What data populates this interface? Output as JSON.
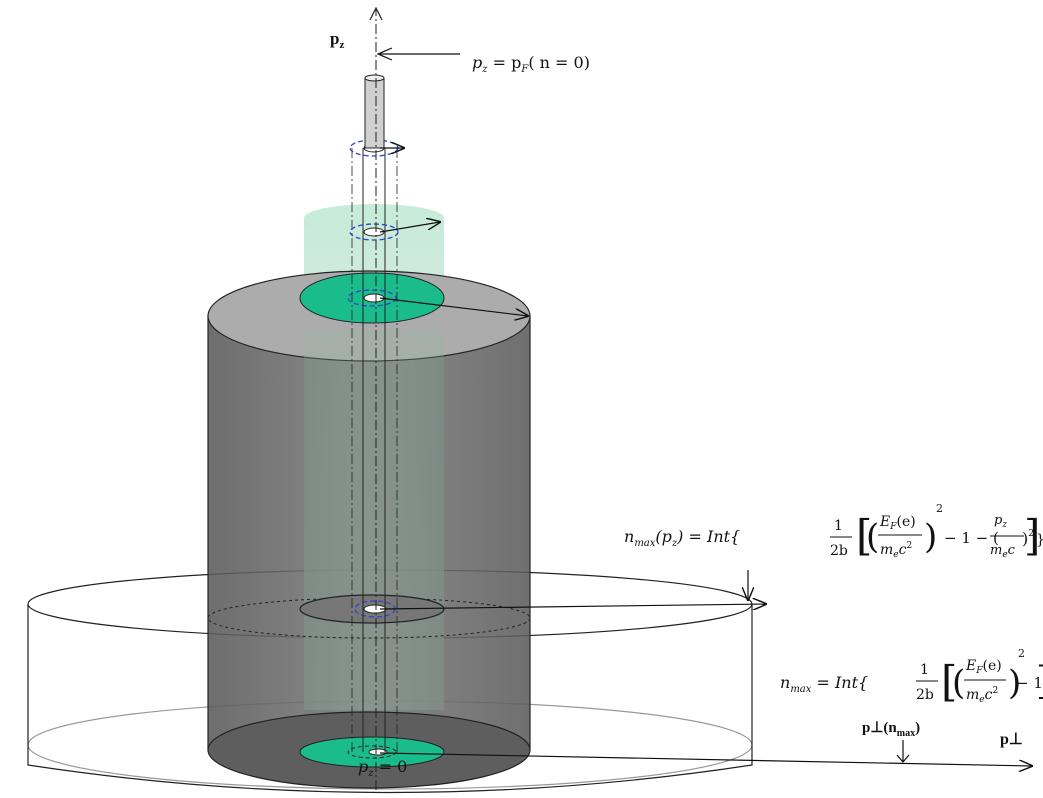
{
  "labels": {
    "pz_axis": "p",
    "pz_axis_sub": "z",
    "pperp_axis": "p⊥",
    "pperp_nmax": "p⊥(n",
    "pperp_nmax_sub": "max",
    "pperp_nmax_close": ")",
    "pz_zero": "p",
    "pz_zero_sub": "z",
    "pz_zero_rest": " = 0"
  },
  "equations": {
    "pz_pf": {
      "lhs": "p",
      "lhs_sub": "z",
      "mid": " = p",
      "mid_sub": "F",
      "rest": "( n = 0)"
    },
    "nmax_pz": {
      "lhs": "n",
      "lhs_sub": "max",
      "arg": "(p",
      "arg_sub": "z",
      "arg_close": ") = Int{",
      "frac_num": "1",
      "frac_den": "2b",
      "inner_num": "E",
      "inner_num_sub": "F",
      "inner_num_rest": "(e)",
      "inner_den": "m",
      "inner_den_sub": "e",
      "inner_den_rest": "c",
      "inner_den_pow": "2",
      "pow": "2",
      "minus_one": " − 1 − (",
      "pz_num": "p",
      "pz_num_sub": "z",
      "pz_den": "m",
      "pz_den_sub": "e",
      "pz_den_rest": "c",
      "pz_pow": "2",
      "tail": ")",
      "close": "}"
    },
    "nmax": {
      "lhs": "n",
      "lhs_sub": "max",
      "eq": " = Int{",
      "frac_num": "1",
      "frac_den": "2b",
      "inner_num": "E",
      "inner_num_sub": "F",
      "inner_num_rest": "(e)",
      "inner_den": "m",
      "inner_den_sub": "e",
      "inner_den_rest": "c",
      "inner_den_pow": "2",
      "pow": "2",
      "minus_one": " − 1",
      "close": "]"
    }
  },
  "colors": {
    "teal": "#1abc8c",
    "cylinder_dark": "#666666",
    "cylinder_top": "#a9a9a9",
    "pale_green": "#c9e9d9",
    "outline": "#111111",
    "dashed_blue": "#3344cc"
  }
}
